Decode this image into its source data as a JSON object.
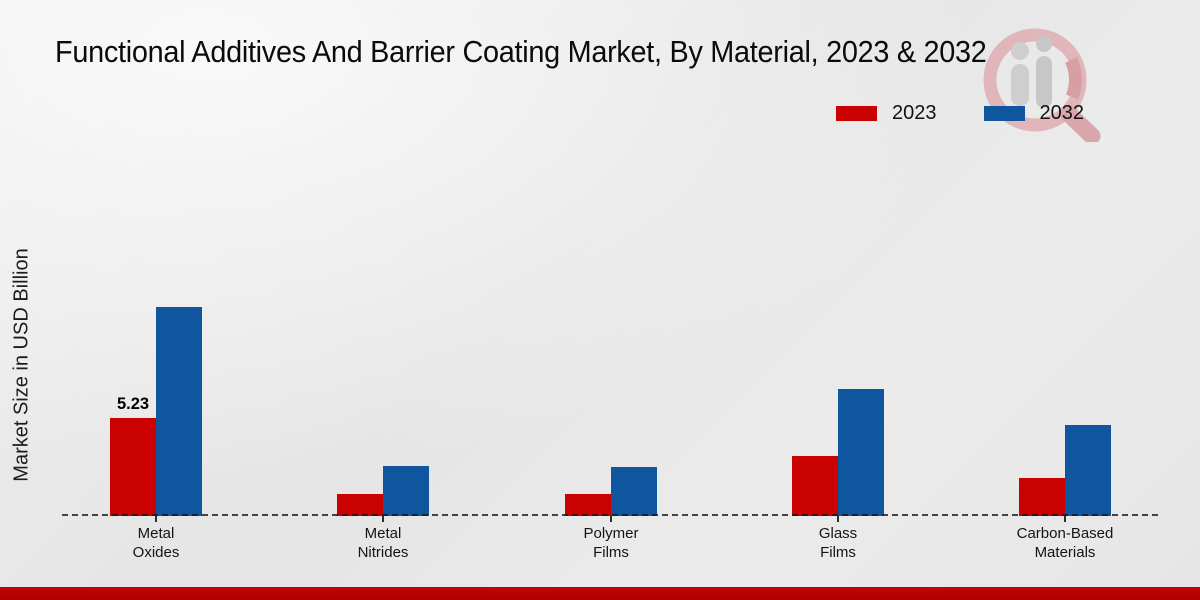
{
  "page": {
    "footer_accent_color": "#b90000",
    "watermark_icon": "magnifier-people-bar-chart-logo"
  },
  "chart_data": {
    "type": "bar",
    "title": "Functional Additives And Barrier Coating Market, By Material, 2023 & 2032",
    "xlabel": "",
    "ylabel": "Market Size in USD Billion",
    "categories": [
      "Metal Oxides",
      "Metal Nitrides",
      "Polymer Films",
      "Glass Films",
      "Carbon-Based Materials"
    ],
    "series": [
      {
        "name": "2023",
        "color": "#c90101",
        "values": [
          5.23,
          1.17,
          1.17,
          3.2,
          2.03
        ]
      },
      {
        "name": "2032",
        "color": "#10569e",
        "values": [
          11.15,
          2.67,
          2.62,
          6.78,
          4.86
        ]
      }
    ],
    "value_labels": [
      {
        "series": "2023",
        "category": "Metal Oxides",
        "text": "5.23"
      }
    ],
    "ylim": [
      0,
      12
    ],
    "grid": false,
    "legend_position": "top-right",
    "baseline_style": "dashed"
  }
}
